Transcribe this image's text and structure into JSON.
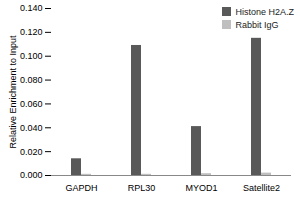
{
  "chart_data": {
    "type": "bar",
    "categories": [
      "GAPDH",
      "RPL30",
      "MYOD1",
      "Satellite2"
    ],
    "series": [
      {
        "name": "Histone H2A.Z",
        "color": "#595959",
        "values": [
          0.014,
          0.109,
          0.041,
          0.115
        ]
      },
      {
        "name": "Rabbit IgG",
        "color": "#bfbfbf",
        "values": [
          0.001,
          0.001,
          0.0015,
          0.002
        ]
      }
    ],
    "y_label": "Relative Enrichment to Input",
    "ylim": [
      0,
      0.14
    ],
    "yticks": [
      {
        "value": 0,
        "label": "0.000"
      },
      {
        "value": 0.02,
        "label": "0.020"
      },
      {
        "value": 0.04,
        "label": "0.040"
      },
      {
        "value": 0.06,
        "label": "0.060"
      },
      {
        "value": 0.08,
        "label": "0.080"
      },
      {
        "value": 0.1,
        "label": "0.100"
      },
      {
        "value": 0.12,
        "label": "0.120"
      },
      {
        "value": 0.14,
        "label": "0.140"
      }
    ],
    "legend": "top-right",
    "grid": false
  }
}
